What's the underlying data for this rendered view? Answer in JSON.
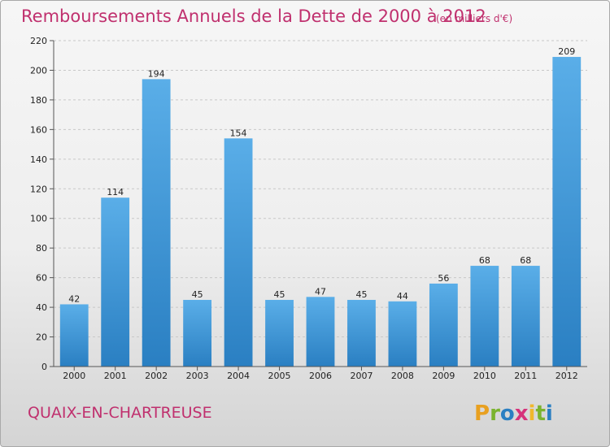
{
  "chart_data": {
    "type": "bar",
    "title": "Remboursements Annuels de la Dette de 2000 à 2012",
    "subtitle": "(en milliers d'€)",
    "categories": [
      "2000",
      "2001",
      "2002",
      "2003",
      "2004",
      "2005",
      "2006",
      "2007",
      "2008",
      "2009",
      "2010",
      "2011",
      "2012"
    ],
    "values": [
      42,
      114,
      194,
      45,
      154,
      45,
      47,
      45,
      44,
      56,
      68,
      68,
      209
    ],
    "ylim": [
      0,
      220
    ],
    "yticks": [
      0,
      20,
      40,
      60,
      80,
      100,
      120,
      140,
      160,
      180,
      200,
      220
    ],
    "xlabel": "",
    "ylabel": "",
    "grid": true,
    "bar_color_light": "#5aaee8",
    "bar_color_dark": "#2a7fc2",
    "grid_color": "#c8c8c8"
  },
  "commune_name": "QUAIX-EN-CHARTREUSE",
  "logo": {
    "text": "Proxiti",
    "colors": [
      "#e8a020",
      "#7bb32e",
      "#2a7fc2",
      "#d6327a",
      "#f0b82c",
      "#7bb32e",
      "#2a7fc2"
    ]
  }
}
